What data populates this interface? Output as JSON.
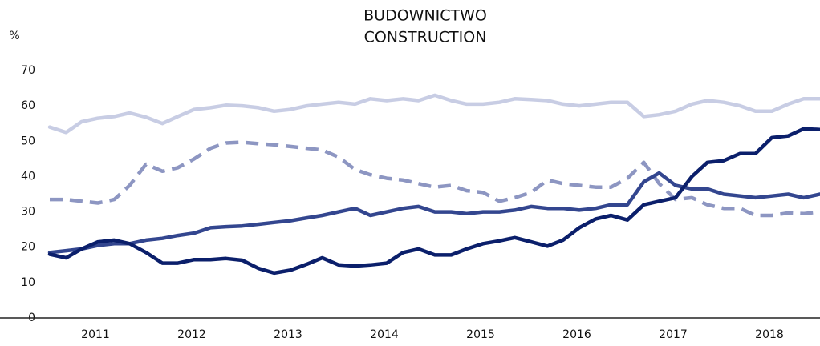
{
  "chart_data": {
    "type": "line",
    "title": [
      "BUDOWNICTWO",
      "CONSTRUCTION"
    ],
    "y_label": "%",
    "x": [
      2011,
      2011.17,
      2011.33,
      2011.5,
      2011.67,
      2011.83,
      2012,
      2012.17,
      2012.33,
      2012.5,
      2012.67,
      2012.83,
      2013,
      2013.17,
      2013.33,
      2013.5,
      2013.67,
      2013.83,
      2014,
      2014.17,
      2014.33,
      2014.5,
      2014.67,
      2014.83,
      2015,
      2015.17,
      2015.33,
      2015.5,
      2015.67,
      2015.83,
      2016,
      2016.17,
      2016.33,
      2016.5,
      2016.67,
      2016.83,
      2017,
      2017.17,
      2017.33,
      2017.5,
      2017.67,
      2017.83,
      2018,
      2018.17,
      2018.33,
      2018.5,
      2018.67,
      2018.83,
      2019
    ],
    "xlim": [
      2011,
      2019
    ],
    "xticks": [
      2011,
      2012,
      2013,
      2014,
      2015,
      2016,
      2017,
      2018
    ],
    "ylim": [
      0,
      70
    ],
    "yticks": [
      0,
      10,
      20,
      30,
      40,
      50,
      60,
      70
    ],
    "series": [
      {
        "color": "#c8cde4",
        "dashed": false,
        "values": [
          54,
          52.5,
          55.5,
          56.5,
          57,
          58,
          56.8,
          55,
          57,
          59,
          59.5,
          60.2,
          60,
          59.5,
          58.5,
          59,
          60,
          60.5,
          61,
          60.5,
          62,
          61.5,
          62,
          61.5,
          63,
          61.5,
          60.5,
          60.5,
          61,
          62,
          61.8,
          61.5,
          60.5,
          60,
          60.5,
          61,
          61,
          57,
          57.5,
          58.5,
          60.5,
          61.5,
          61,
          60,
          58.5,
          58.5,
          60.5,
          62,
          62
        ]
      },
      {
        "color": "#8d96c2",
        "dashed": true,
        "values": [
          33.5,
          33.5,
          33,
          32.5,
          33.5,
          37.5,
          43.5,
          41.5,
          42.5,
          45,
          48,
          49.5,
          49.7,
          49.3,
          49,
          48.5,
          48,
          47.5,
          45.5,
          42,
          40.5,
          39.5,
          39,
          38,
          37,
          37.5,
          36,
          35.5,
          33,
          34,
          35.5,
          39,
          38,
          37.5,
          37,
          37,
          39.5,
          44,
          38,
          33.5,
          34,
          32,
          31,
          31,
          29,
          29,
          29.7,
          29.5,
          30
        ]
      },
      {
        "color": "#33468f",
        "dashed": false,
        "values": [
          18.5,
          19,
          19.5,
          20.5,
          21,
          21,
          22,
          22.5,
          23.3,
          24,
          25.5,
          25.8,
          26,
          26.5,
          27,
          27.5,
          28.3,
          29,
          30,
          31,
          29,
          30,
          31,
          31.5,
          30,
          30,
          29.5,
          30,
          30,
          30.5,
          31.5,
          31,
          31,
          30.5,
          31,
          32,
          32,
          38.5,
          41,
          37.5,
          36.5,
          36.5,
          35,
          34.5,
          34,
          34.5,
          35,
          34,
          35
        ]
      },
      {
        "color": "#0b1f6b",
        "dashed": false,
        "values": [
          18,
          17,
          19.5,
          21.5,
          22,
          21,
          18.5,
          15.5,
          15.5,
          16.5,
          16.5,
          16.8,
          16.3,
          14,
          12.7,
          13.5,
          15.2,
          17,
          15,
          14.7,
          15,
          15.5,
          18.5,
          19.5,
          17.8,
          17.8,
          19.5,
          21,
          21.8,
          22.7,
          21.5,
          20.3,
          22,
          25.5,
          28,
          29,
          27.7,
          32,
          33,
          34,
          40,
          44,
          44.5,
          46.5,
          46.5,
          51,
          51.5,
          53.5,
          53.3
        ]
      }
    ]
  }
}
